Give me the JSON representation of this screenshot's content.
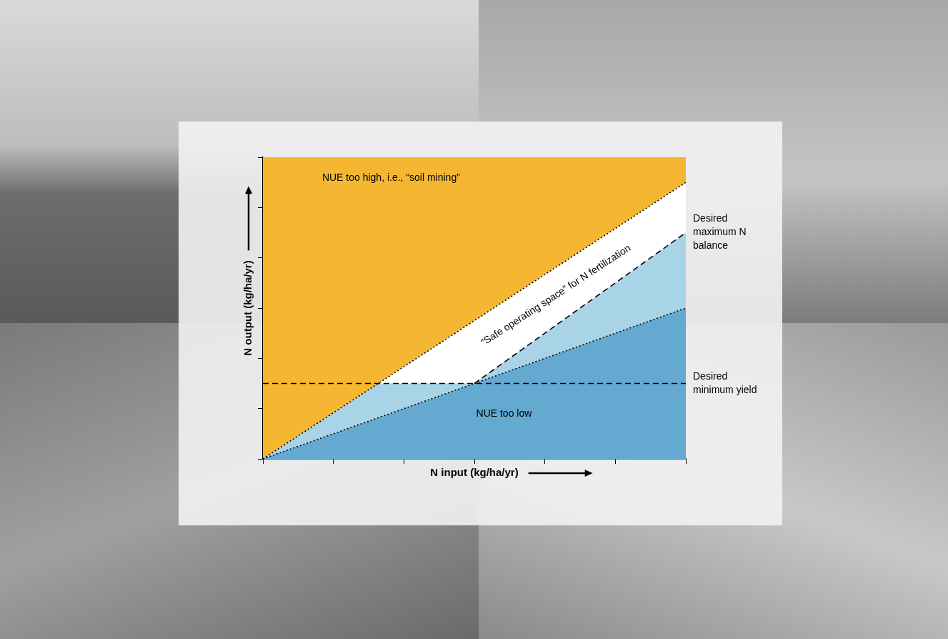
{
  "chart_data": {
    "type": "line",
    "x_label": "N input (kg/ha/yr)",
    "y_label": "N output (kg/ha/yr)",
    "xlim": [
      0,
      600
    ],
    "ylim": [
      0,
      600
    ],
    "xticks": [
      0,
      100,
      200,
      300,
      400,
      500,
      600
    ],
    "yticks": [
      0,
      100,
      200,
      300,
      400,
      500,
      600
    ],
    "grid": false,
    "tick_labels": false,
    "series": [
      {
        "color": "#000000",
        "line_style": "dotted",
        "x": [
          0,
          600
        ],
        "values": [
          0,
          550
        ]
      },
      {
        "color": "#000000",
        "line_style": "dotted",
        "x": [
          0,
          600
        ],
        "values": [
          0,
          300
        ]
      },
      {
        "name": "Desired minimum yield",
        "color": "#000000",
        "line_style": "dashed",
        "x": [
          0,
          600
        ],
        "values": [
          150,
          150
        ]
      },
      {
        "name": "Desired maximum N balance",
        "color": "#000000",
        "line_style": "dashed",
        "x": [
          300,
          600
        ],
        "values": [
          150,
          450
        ]
      }
    ],
    "regions": [
      {
        "label": "NUE too high, i.e., “soil mining”",
        "color": "#f5b731",
        "x": [
          0,
          600,
          600,
          0
        ],
        "values": [
          0,
          550,
          600,
          600
        ]
      },
      {
        "color": "#a9d4e8",
        "x": [
          0,
          600,
          600
        ],
        "values": [
          0,
          550,
          300
        ]
      },
      {
        "label": "NUE too low",
        "color": "#64a9d0",
        "x": [
          0,
          600,
          600
        ],
        "values": [
          0,
          300,
          0
        ]
      },
      {
        "label": "“Safe operating space” for N fertilization",
        "color": "#ffffff",
        "x": [
          163.6,
          600,
          600,
          300
        ],
        "values": [
          150,
          550,
          450,
          150
        ]
      }
    ]
  }
}
